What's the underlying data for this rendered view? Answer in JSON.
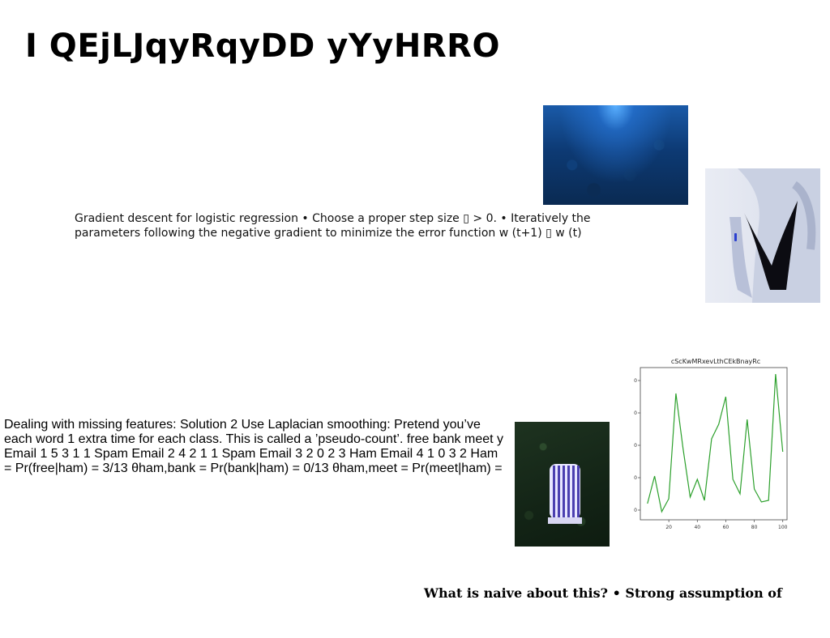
{
  "slide": {
    "title": "I QEjLJqyRqyDD yYyHRRO",
    "paragraph_gradient": "Gradient descent for logistic regression • Choose a proper step size ▯ > 0. • Iteratively the parameters following the negative gradient to minimize the error function w (t+1) ▯ w (t)",
    "paragraph_missing": "Dealing with missing features: Solution 2 Use Laplacian smoothing: Pretend you’ve each word 1 extra time for each class. This is called a ’pseudo-count’. free bank meet y Email 1 5 3 1 1 Spam Email 2 4 2 1 1 Spam Email 3 2 0 2 3 Ham Email 4 1 0 3 2 Ham = Pr(free|ham) = 3/13 θham,bank = Pr(bank|ham) = 0/13 θham,meet = Pr(meet|ham) =",
    "paragraph_naive": "What is naive about this? • Strong assumption of"
  },
  "images": {
    "forest": "forest-photo",
    "figure": "person-photo",
    "window": "lit-window-photo"
  },
  "chart_data": {
    "type": "line",
    "title": "cScKwMRxevLthCEkBnayRc",
    "color": "#2ca02c",
    "x": [
      5,
      10,
      15,
      20,
      25,
      30,
      35,
      40,
      45,
      50,
      55,
      60,
      65,
      70,
      75,
      80,
      85,
      90,
      95,
      100
    ],
    "y": [
      4,
      21,
      -1,
      7,
      72,
      38,
      8,
      19,
      6,
      44,
      53,
      70,
      19,
      10,
      56,
      13,
      5,
      6,
      84,
      36
    ],
    "xticks": [
      "20",
      "40",
      "60",
      "80",
      "100"
    ],
    "yticks": [
      "0",
      "20",
      "40",
      "60",
      "80"
    ],
    "xlim": [
      0,
      103
    ],
    "ylim": [
      -6,
      88
    ]
  }
}
